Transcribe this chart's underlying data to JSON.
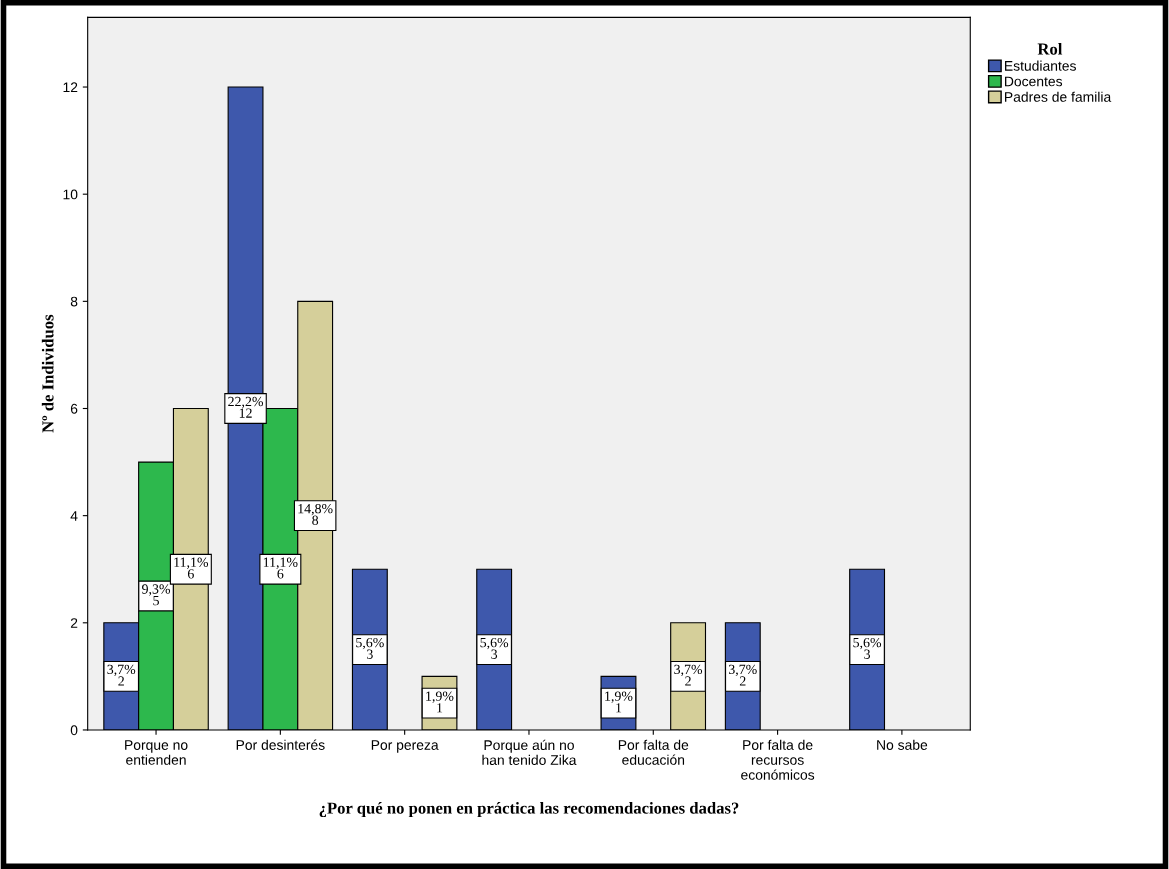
{
  "chart_data": {
    "type": "bar",
    "xlabel": "¿Por qué no ponen en práctica las recomendaciones dadas?",
    "ylabel": "Nº de Individuos",
    "legend_title": "Rol",
    "categories": [
      "Porque no\nentienden",
      "Por desinterés",
      "Por pereza",
      "Porque aún no\nhan tenido Zika",
      "Por falta de\neducación",
      "Por falta de\nrecursos\neconómicos",
      "No sabe"
    ],
    "series": [
      {
        "name": "Estudiantes",
        "color": "#3e58ac",
        "values": [
          2,
          12,
          3,
          3,
          1,
          2,
          3
        ],
        "value_labels": [
          "3,7%\n2",
          "22,2%\n12",
          "5,6%\n3",
          "5,6%\n3",
          "1,9%\n1",
          "3,7%\n2",
          "5,6%\n3"
        ]
      },
      {
        "name": "Docentes",
        "color": "#2db84d",
        "values": [
          5,
          6,
          null,
          null,
          null,
          null,
          null
        ],
        "value_labels": [
          "9,3%\n5",
          "11,1%\n6",
          null,
          null,
          null,
          null,
          null
        ]
      },
      {
        "name": "Padres de familia",
        "color": "#d5cf9a",
        "values": [
          6,
          8,
          1,
          null,
          2,
          null,
          null
        ],
        "value_labels": [
          "11,1%\n6",
          "14,8%\n8",
          "1,9%\n1",
          null,
          "3,7%\n2",
          null,
          null
        ]
      }
    ],
    "ylim": [
      0,
      13.3
    ],
    "yticks": [
      0,
      2,
      4,
      6,
      8,
      10,
      12
    ],
    "grid": false,
    "legend": "top right"
  }
}
